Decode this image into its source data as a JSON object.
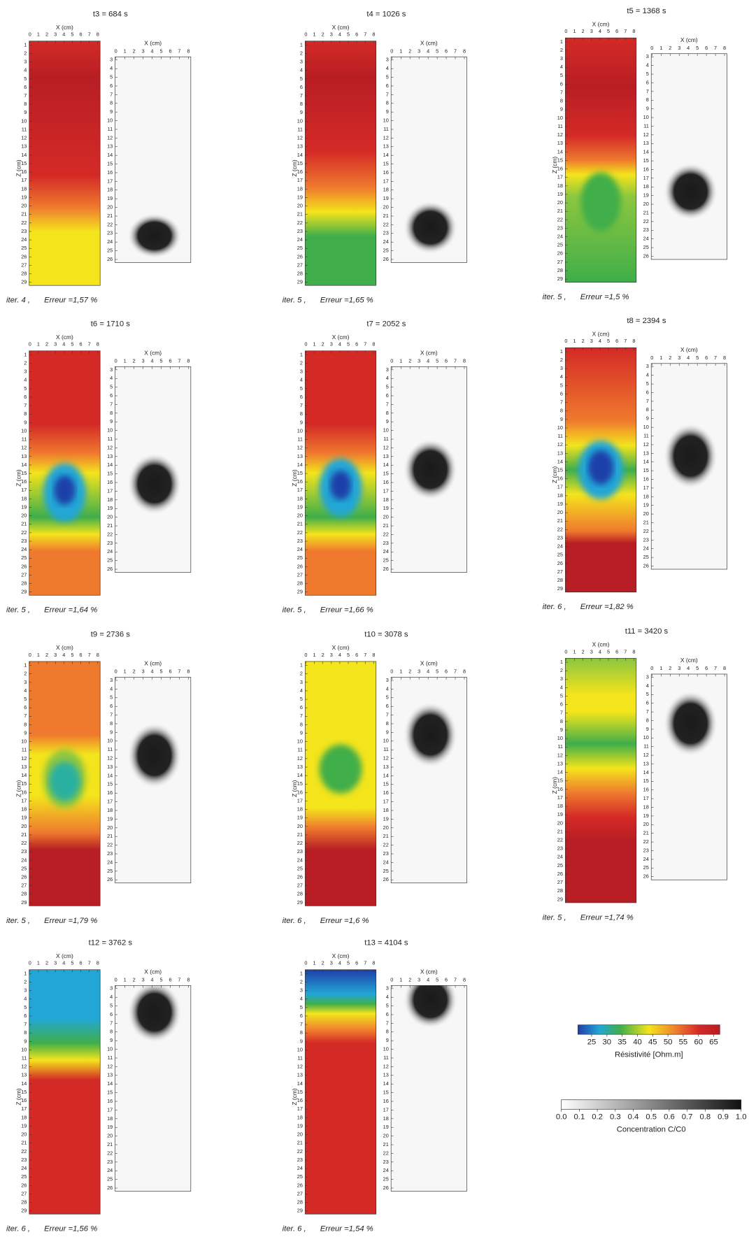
{
  "panels": [
    {
      "title": "t3 = 684 s",
      "iteration": "iter. 4 ,",
      "error": "Erreur =1,57 %"
    },
    {
      "title": "t4 = 1026 s",
      "iteration": "iter. 5 ,",
      "error": "Erreur =1,65 %"
    },
    {
      "title": "t5 = 1368 s",
      "iteration": "iter. 5 ,",
      "error": "Erreur =1,5 %"
    },
    {
      "title": "t6 = 1710 s",
      "iteration": "iter. 5 ,",
      "error": "Erreur =1,64 %"
    },
    {
      "title": "t7 = 2052 s",
      "iteration": "iter. 5 ,",
      "error": "Erreur =1,66 %"
    },
    {
      "title": "t8 = 2394 s",
      "iteration": "iter. 6 ,",
      "error": "Erreur =1,82 %"
    },
    {
      "title": "t9 = 2736 s",
      "iteration": "iter. 5 ,",
      "error": "Erreur =1,79 %"
    },
    {
      "title": "t10 = 3078 s",
      "iteration": "iter. 6 ,",
      "error": "Erreur =1,6 %"
    },
    {
      "title": "t11 = 3420 s",
      "iteration": "iter. 5 ,",
      "error": "Erreur =1,74 %"
    },
    {
      "title": "t12 = 3762 s",
      "iteration": "iter. 6 ,",
      "error": "Erreur =1,56 %"
    },
    {
      "title": "t13 = 4104 s",
      "iteration": "iter. 6 ,",
      "error": "Erreur =1,54 %"
    }
  ],
  "axes": {
    "x_label": "X (cm)",
    "z_label": "Z (cm)",
    "x_ticks": [
      0,
      1,
      2,
      3,
      4,
      5,
      6,
      7,
      8
    ],
    "z_ticks_resistivity": [
      1,
      2,
      3,
      4,
      5,
      6,
      7,
      8,
      9,
      10,
      11,
      12,
      13,
      14,
      15,
      16,
      17,
      18,
      19,
      20,
      21,
      22,
      23,
      24,
      25,
      26,
      27,
      28,
      29
    ],
    "z_ticks_concentration": [
      3,
      4,
      5,
      6,
      7,
      8,
      9,
      10,
      11,
      12,
      13,
      14,
      15,
      16,
      17,
      18,
      19,
      20,
      21,
      22,
      23,
      24,
      25,
      26
    ]
  },
  "colorbars": [
    {
      "label": "Résistivité [Ohm.m]",
      "lim": [
        20.5,
        67
      ],
      "ticks": [
        25,
        30,
        35,
        40,
        45,
        50,
        55,
        60,
        65
      ]
    },
    {
      "label": "Concentration C/C0",
      "lim": [
        0,
        1
      ],
      "ticks": [
        {
          "value": 0,
          "label": "0.0"
        },
        0.1,
        0.2,
        0.3,
        0.4,
        0.5,
        0.6,
        0.7,
        0.8,
        0.9,
        {
          "value": 1,
          "label": "1.0"
        }
      ]
    }
  ]
}
